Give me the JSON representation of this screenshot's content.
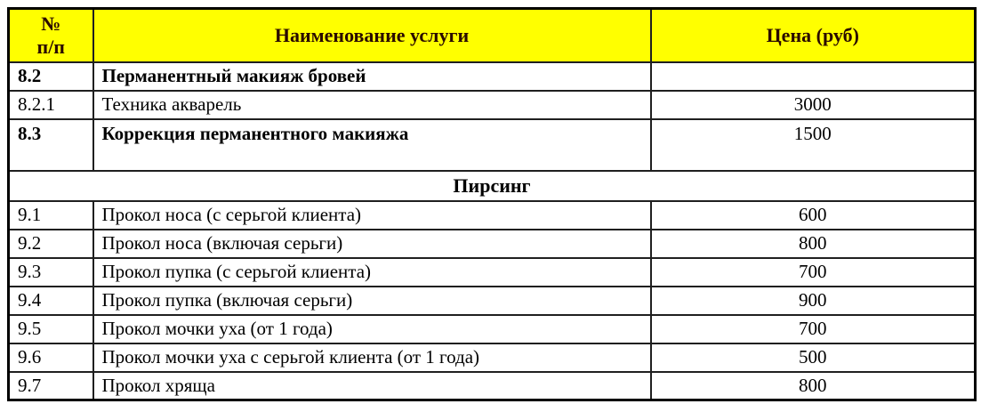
{
  "table": {
    "accent_colors": {
      "header_background": "#ffff00",
      "header_text": "#2a0a00",
      "border": "#000000",
      "body_text": "#000000"
    },
    "header": {
      "number_column_line1": "№",
      "number_column_line2": "п/п",
      "service_column": "Наименование услуги",
      "price_column": "Цена (руб)"
    },
    "rows": [
      {
        "num": "8.2",
        "name": "Перманентный макияж бровей",
        "price": "",
        "bold": true,
        "tall": false
      },
      {
        "num": "8.2.1",
        "name": "Техника акварель",
        "price": "3000",
        "bold": false,
        "tall": false
      },
      {
        "num": "8.3",
        "name": "Коррекция перманентного макияжа",
        "price": "1500",
        "bold": true,
        "tall": true
      },
      {
        "type": "section",
        "label": "Пирсинг"
      },
      {
        "num": "9.1",
        "name": "Прокол носа (с серьгой клиента)",
        "price": "600",
        "bold": false,
        "tall": false
      },
      {
        "num": "9.2",
        "name": "Прокол носа (включая серьги)",
        "price": "800",
        "bold": false,
        "tall": false
      },
      {
        "num": "9.3",
        "name": "Прокол пупка (с серьгой клиента)",
        "price": "700",
        "bold": false,
        "tall": false
      },
      {
        "num": "9.4",
        "name": "Прокол пупка (включая серьги)",
        "price": "900",
        "bold": false,
        "tall": false
      },
      {
        "num": "9.5",
        "name": "Прокол мочки уха (от 1 года)",
        "price": "700",
        "bold": false,
        "tall": false
      },
      {
        "num": "9.6",
        "name": "Прокол мочки уха с серьгой клиента (от 1 года)",
        "price": "500",
        "bold": false,
        "tall": false
      },
      {
        "num": "9.7",
        "name": "Прокол хряща",
        "price": "800",
        "bold": false,
        "tall": false
      }
    ]
  }
}
